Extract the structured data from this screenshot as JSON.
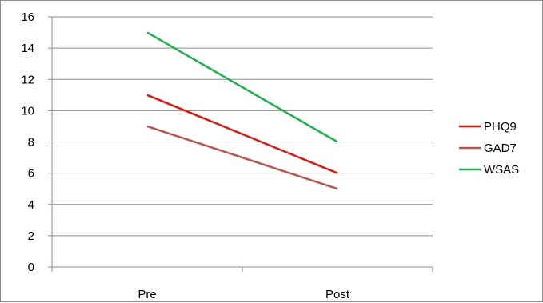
{
  "chart_data": {
    "type": "line",
    "title": "",
    "xlabel": "",
    "ylabel": "",
    "categories": [
      "Pre",
      "Post"
    ],
    "ylim": [
      0,
      16
    ],
    "yticks": [
      0,
      2,
      4,
      6,
      8,
      10,
      12,
      14,
      16
    ],
    "grid": true,
    "legend_position": "right",
    "series": [
      {
        "name": "PHQ9",
        "values": [
          11,
          6
        ],
        "color": "#e3120b"
      },
      {
        "name": "GAD7",
        "values": [
          9,
          5
        ],
        "color": "#c0504d"
      },
      {
        "name": "WSAS",
        "values": [
          15,
          8
        ],
        "color": "#19b24a"
      }
    ]
  }
}
